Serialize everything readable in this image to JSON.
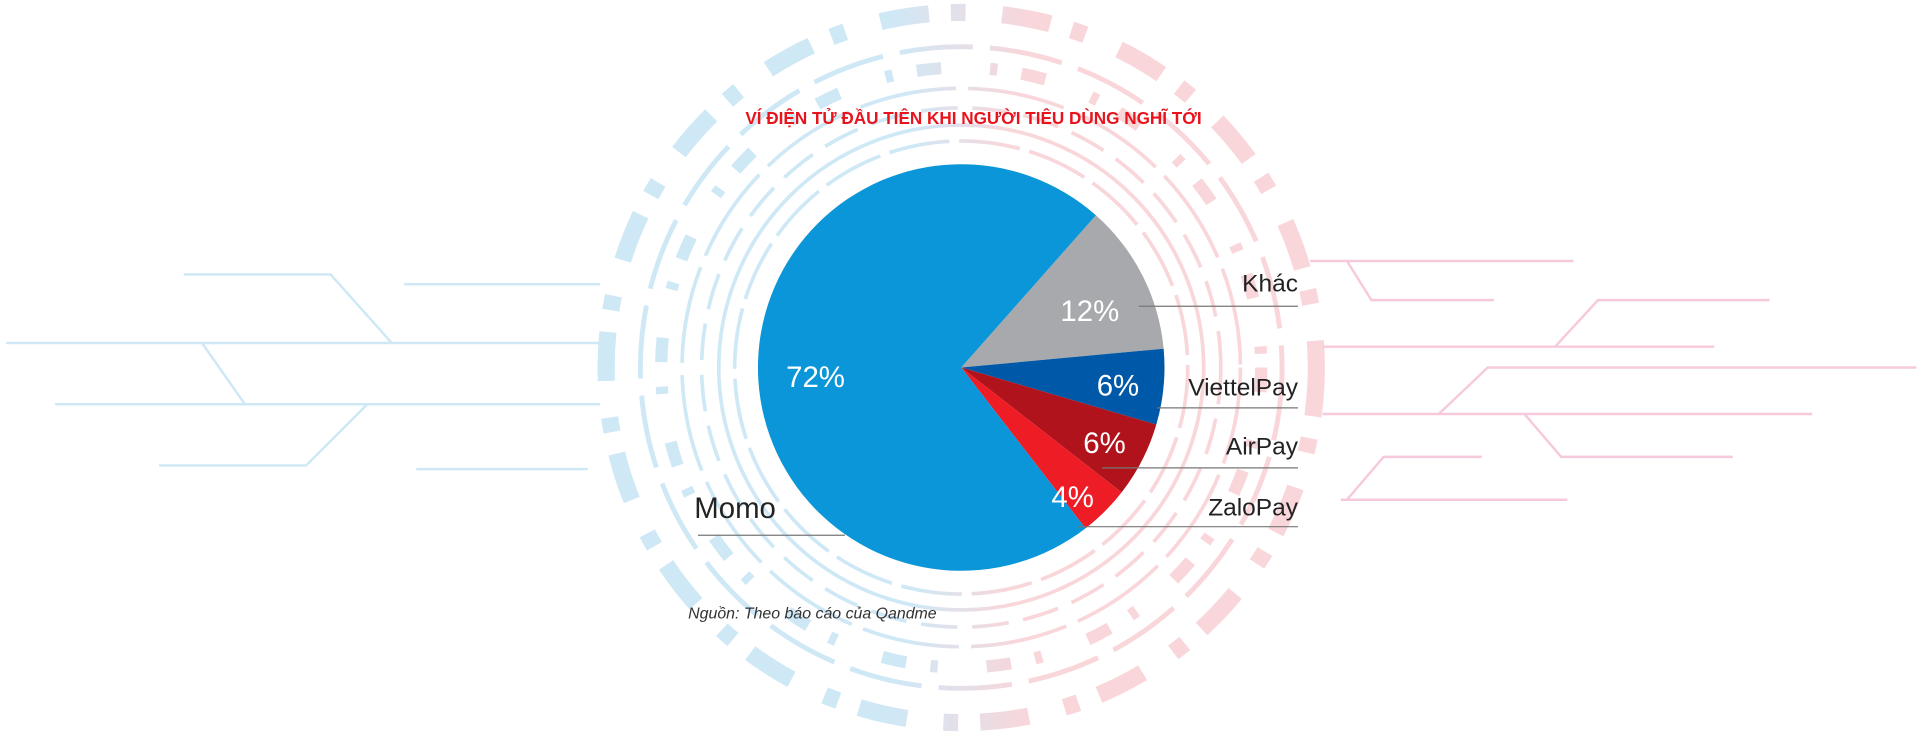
{
  "chart_data": {
    "type": "pie",
    "title": "VÍ ĐIỆN TỬ ĐẦU TIÊN KHI NGƯỜI TIÊU DÙNG NGHĨ TỚI",
    "categories": [
      "Khác",
      "ViettelPay",
      "AirPay",
      "ZaloPay",
      "Momo"
    ],
    "values": [
      12,
      6,
      6,
      4,
      72
    ],
    "value_labels": [
      "12%",
      "6%",
      "6%",
      "4%",
      "72%"
    ],
    "colors": [
      "#a7a9ac",
      "#0059a8",
      "#b0131b",
      "#ee1c25",
      "#0a96d8"
    ],
    "source": "Nguồn: Theo báo cáo của Qandme"
  }
}
